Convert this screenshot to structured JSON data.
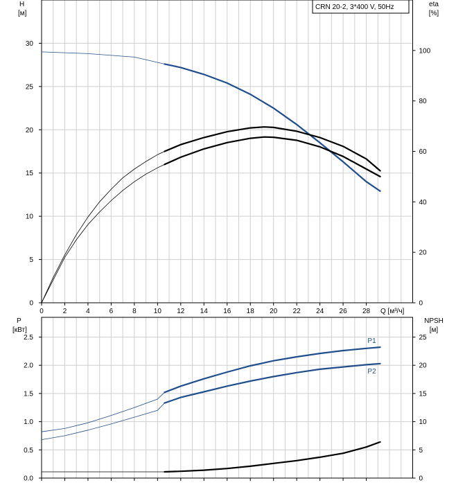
{
  "legend_title": "CRN 20-2, 3*400 V, 50Hz",
  "colors": {
    "blue": "#1f4e8c",
    "black": "#000000",
    "grid": "#cfcfcf"
  },
  "top_chart": {
    "y_left_label": [
      "H",
      "[м]"
    ],
    "y_right_label": [
      "eta",
      "[%]"
    ],
    "x_axis_label": "Q [м³/ч]"
  },
  "bottom_chart": {
    "y_left_label": [
      "P",
      "[кВт]"
    ],
    "y_right_label": [
      "NPSH",
      "[м]"
    ]
  },
  "chart_data": [
    {
      "type": "line",
      "x_ticks": [
        0,
        2,
        4,
        6,
        8,
        10,
        12,
        14,
        16,
        18,
        20,
        22,
        24,
        26,
        28
      ],
      "xlim": [
        0,
        32
      ],
      "y_left": {
        "ticks": [
          0,
          5,
          10,
          15,
          20,
          25,
          30
        ],
        "ylim": [
          0,
          35
        ]
      },
      "y_right": {
        "ticks": [
          0,
          20,
          40,
          60,
          80,
          100
        ],
        "ylim": [
          0,
          120
        ]
      },
      "grid": true,
      "series": [
        {
          "axis": "left",
          "color": "#1f4e8c",
          "work_range": [
            10.6,
            29.2
          ],
          "points": [
            [
              0,
              29.0
            ],
            [
              4,
              28.8
            ],
            [
              8,
              28.4
            ],
            [
              10.6,
              27.6
            ],
            [
              12,
              27.2
            ],
            [
              14,
              26.4
            ],
            [
              16,
              25.4
            ],
            [
              18,
              24.1
            ],
            [
              20,
              22.5
            ],
            [
              22,
              20.6
            ],
            [
              24,
              18.5
            ],
            [
              26,
              16.3
            ],
            [
              28,
              14.0
            ],
            [
              29.2,
              12.9
            ]
          ]
        },
        {
          "axis": "right",
          "color": "#000000",
          "work_range": [
            10.6,
            29.2
          ],
          "points": [
            [
              0,
              0
            ],
            [
              1,
              9
            ],
            [
              2,
              18
            ],
            [
              3,
              25
            ],
            [
              4,
              31
            ],
            [
              5,
              36
            ],
            [
              6,
              40.5
            ],
            [
              7,
              44.5
            ],
            [
              8,
              48
            ],
            [
              9,
              51
            ],
            [
              10,
              53.5
            ],
            [
              10.6,
              54.8
            ],
            [
              12,
              57.7
            ],
            [
              14,
              61.0
            ],
            [
              16,
              63.5
            ],
            [
              18,
              65.2
            ],
            [
              19.2,
              65.7
            ],
            [
              20,
              65.6
            ],
            [
              22,
              64.4
            ],
            [
              24,
              61.8
            ],
            [
              26,
              58.0
            ],
            [
              28,
              53.0
            ],
            [
              29.2,
              50.0
            ]
          ]
        },
        {
          "axis": "right",
          "color": "#000000",
          "work_range": [
            10.6,
            29.2
          ],
          "points": [
            [
              0,
              0
            ],
            [
              1,
              10
            ],
            [
              2,
              19
            ],
            [
              3,
              27
            ],
            [
              4,
              34
            ],
            [
              5,
              40
            ],
            [
              6,
              45
            ],
            [
              7,
              49.5
            ],
            [
              8,
              53
            ],
            [
              9,
              56
            ],
            [
              10,
              58.7
            ],
            [
              10.6,
              60.0
            ],
            [
              12,
              62.7
            ],
            [
              14,
              65.5
            ],
            [
              16,
              67.8
            ],
            [
              18,
              69.3
            ],
            [
              19.2,
              69.7
            ],
            [
              20,
              69.5
            ],
            [
              22,
              68.0
            ],
            [
              24,
              65.5
            ],
            [
              26,
              62.0
            ],
            [
              28,
              57.0
            ],
            [
              29.2,
              52.3
            ]
          ]
        }
      ]
    },
    {
      "type": "line",
      "x_ticks": [
        0,
        2,
        4,
        6,
        8,
        10,
        12,
        14,
        16,
        18,
        20,
        22,
        24,
        26,
        28
      ],
      "xlim": [
        0,
        32
      ],
      "y_left": {
        "ticks": [
          "0.0",
          "0.5",
          "1.0",
          "1.5",
          "2.0",
          "2.5"
        ],
        "ylim": [
          0,
          2.85
        ]
      },
      "y_right": {
        "ticks": [
          0,
          5,
          10,
          15,
          20,
          25
        ],
        "ylim": [
          0,
          28.5
        ]
      },
      "grid": true,
      "series": [
        {
          "name": "P1",
          "axis": "left",
          "color": "#1f4e8c",
          "work_range": [
            10.6,
            29.2
          ],
          "points": [
            [
              0,
              0.82
            ],
            [
              2,
              0.88
            ],
            [
              4,
              0.98
            ],
            [
              6,
              1.11
            ],
            [
              8,
              1.25
            ],
            [
              10,
              1.4
            ],
            [
              10.6,
              1.52
            ],
            [
              12,
              1.63
            ],
            [
              14,
              1.76
            ],
            [
              16,
              1.88
            ],
            [
              18,
              1.99
            ],
            [
              20,
              2.08
            ],
            [
              22,
              2.15
            ],
            [
              24,
              2.21
            ],
            [
              26,
              2.26
            ],
            [
              28,
              2.3
            ],
            [
              29.2,
              2.32
            ]
          ]
        },
        {
          "name": "P2",
          "axis": "left",
          "color": "#1f4e8c",
          "work_range": [
            10.6,
            29.2
          ],
          "points": [
            [
              0,
              0.68
            ],
            [
              2,
              0.75
            ],
            [
              4,
              0.85
            ],
            [
              6,
              0.96
            ],
            [
              8,
              1.08
            ],
            [
              10,
              1.2
            ],
            [
              10.6,
              1.33
            ],
            [
              12,
              1.43
            ],
            [
              14,
              1.53
            ],
            [
              16,
              1.63
            ],
            [
              18,
              1.72
            ],
            [
              20,
              1.8
            ],
            [
              22,
              1.87
            ],
            [
              24,
              1.93
            ],
            [
              26,
              1.97
            ],
            [
              28,
              2.01
            ],
            [
              29.2,
              2.03
            ]
          ]
        },
        {
          "axis": "right",
          "color": "#000000",
          "work_range": [
            10.6,
            29.2
          ],
          "points": [
            [
              0,
              1.1
            ],
            [
              4,
              1.1
            ],
            [
              8,
              1.1
            ],
            [
              10.6,
              1.1
            ],
            [
              12,
              1.2
            ],
            [
              14,
              1.4
            ],
            [
              16,
              1.7
            ],
            [
              18,
              2.1
            ],
            [
              20,
              2.6
            ],
            [
              22,
              3.1
            ],
            [
              24,
              3.7
            ],
            [
              26,
              4.4
            ],
            [
              28,
              5.5
            ],
            [
              29.2,
              6.4
            ]
          ]
        }
      ]
    }
  ]
}
